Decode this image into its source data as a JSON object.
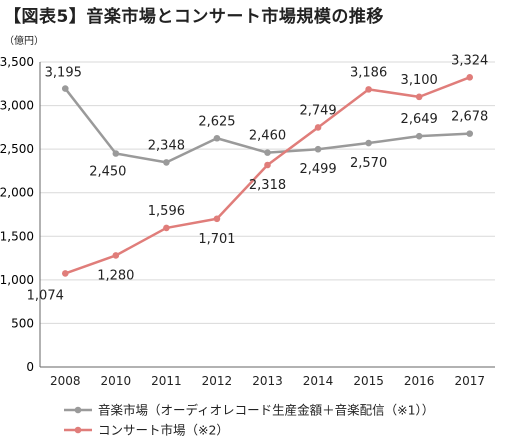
{
  "title": "【図表5】音楽市場とコンサート市場規模の推移",
  "chart_data": {
    "type": "line",
    "title": "【図表5】音楽市場とコンサート市場規模の推移",
    "unit": "（億円）",
    "x": [
      "2008",
      "2010",
      "2011",
      "2012",
      "2013",
      "2014",
      "2015",
      "2016",
      "2017"
    ],
    "ylim": [
      0,
      3500
    ],
    "yticks": [
      0,
      500,
      1000,
      1500,
      2000,
      2500,
      3000,
      3500
    ],
    "ytick_labels": [
      "0",
      "500",
      "1,000",
      "1,500",
      "2,000",
      "2,500",
      "3,000",
      "3,500"
    ],
    "grid": "horizontal",
    "legend_position": "bottom-left",
    "series": [
      {
        "name": "音楽市場（オーディオレコード生産金額＋音楽配信（※1））",
        "color": "#9a9a9a",
        "values": [
          3195,
          2450,
          2348,
          2625,
          2460,
          2499,
          2570,
          2649,
          2678
        ],
        "labels": [
          "3,195",
          "2,450",
          "2,348",
          "2,625",
          "2,460",
          "2,499",
          "2,570",
          "2,649",
          "2,678"
        ]
      },
      {
        "name": "コンサート市場（※2）",
        "color": "#e07d7a",
        "values": [
          1074,
          1280,
          1596,
          1701,
          2318,
          2749,
          3186,
          3100,
          3324
        ],
        "labels": [
          "1,074",
          "1,280",
          "1,596",
          "1,701",
          "2,318",
          "2,749",
          "3,186",
          "3,100",
          "3,324"
        ]
      }
    ]
  }
}
